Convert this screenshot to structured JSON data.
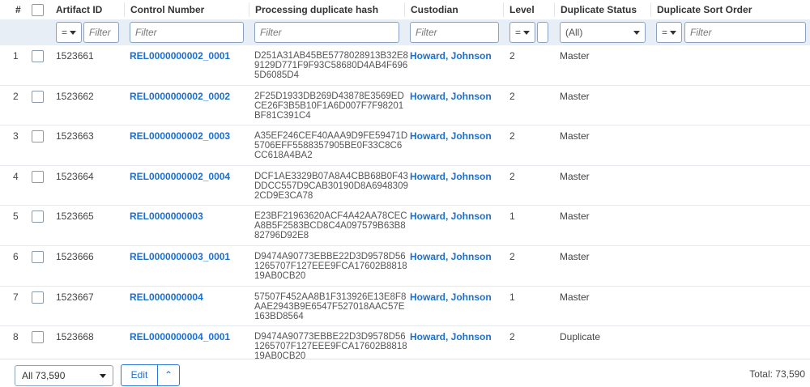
{
  "columns": {
    "num": "#",
    "artifact_id": "Artifact ID",
    "control_number": "Control Number",
    "hash": "Processing duplicate hash",
    "custodian": "Custodian",
    "level": "Level",
    "dup_status": "Duplicate Status",
    "dup_sort": "Duplicate Sort Order"
  },
  "filters": {
    "placeholder": "Filter",
    "op": "=",
    "status_value": "(All)"
  },
  "rows": [
    {
      "n": "1",
      "id": "1523661",
      "control": "REL0000000002_0001",
      "hash": "D251A31AB45BE5778028913B32E89129D771F9F93C58680D4AB4F6965D6085D4",
      "custodian": "Howard, Johnson",
      "level": "2",
      "status": "Master"
    },
    {
      "n": "2",
      "id": "1523662",
      "control": "REL0000000002_0002",
      "hash": "2F25D1933DB269D43878E3569EDCE26F3B5B10F1A6D007F7F98201BF81C391C4",
      "custodian": "Howard, Johnson",
      "level": "2",
      "status": "Master"
    },
    {
      "n": "3",
      "id": "1523663",
      "control": "REL0000000002_0003",
      "hash": "A35EF246CEF40AAA9D9FE59471D5706EFF5588357905BE0F33C8C6CC618A4BA2",
      "custodian": "Howard, Johnson",
      "level": "2",
      "status": "Master"
    },
    {
      "n": "4",
      "id": "1523664",
      "control": "REL0000000002_0004",
      "hash": "DCF1AE3329B07A8A4CBB68B0F43DDCC557D9CAB30190D8A69483092CD9E3CA78",
      "custodian": "Howard, Johnson",
      "level": "2",
      "status": "Master"
    },
    {
      "n": "5",
      "id": "1523665",
      "control": "REL0000000003",
      "hash": "E23BF21963620ACF4A42AA78CECA8B5F2583BCD8C4A097579B63B882796D92E8",
      "custodian": "Howard, Johnson",
      "level": "1",
      "status": "Master"
    },
    {
      "n": "6",
      "id": "1523666",
      "control": "REL0000000003_0001",
      "hash": "D9474A90773EBBE22D3D9578D561265707F127EEE9FCA17602B881819AB0CB20",
      "custodian": "Howard, Johnson",
      "level": "2",
      "status": "Master"
    },
    {
      "n": "7",
      "id": "1523667",
      "control": "REL0000000004",
      "hash": "57507F452AA8B1F313926E13E8F8AAE2943B9E6547F527018AAC57E163BD8564",
      "custodian": "Howard, Johnson",
      "level": "1",
      "status": "Master"
    },
    {
      "n": "8",
      "id": "1523668",
      "control": "REL0000000004_0001",
      "hash": "D9474A90773EBBE22D3D9578D561265707F127EEE9FCA17602B881819AB0CB20",
      "custodian": "Howard, Johnson",
      "level": "2",
      "status": "Duplicate"
    }
  ],
  "footer": {
    "page_select": "All 73,590",
    "edit": "Edit",
    "total": "Total: 73,590"
  }
}
